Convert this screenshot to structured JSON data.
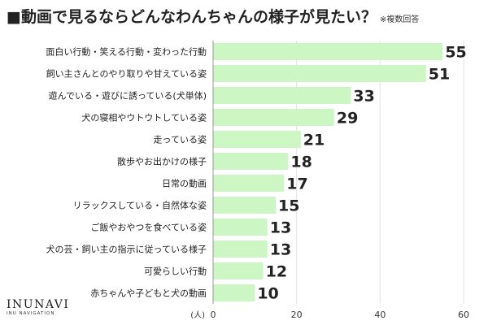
{
  "header": {
    "title": "■動画で見るならどんなわんちゃんの様子が見たい？",
    "note": "※複数回答"
  },
  "brand": {
    "name": "INUNAVI",
    "tagline": "INU NAVIGATION"
  },
  "chart_data": {
    "type": "bar",
    "orientation": "horizontal",
    "categories": [
      "面白い行動・笑える行動・変わった行動",
      "飼い主さんとのやり取りや甘えている姿",
      "遊んでいる・遊びに誘っている(犬単体)",
      "犬の寝相やウトウトしている姿",
      "走っている姿",
      "散歩やお出かけの様子",
      "日常の動画",
      "リラックスしている・自然体な姿",
      "ご飯やおやつを食べている姿",
      "犬の芸・飼い主の指示に従っている様子",
      "可愛らしい行動",
      "赤ちゃんや子どもと犬の動画"
    ],
    "values": [
      55,
      51,
      33,
      29,
      21,
      18,
      17,
      15,
      13,
      13,
      12,
      10
    ],
    "xlim": [
      0,
      60
    ],
    "xticks": [
      0,
      20,
      40,
      60
    ],
    "unit_label": "(人)",
    "bar_color": "#ccf7c4",
    "grid": true,
    "legend": "none"
  }
}
